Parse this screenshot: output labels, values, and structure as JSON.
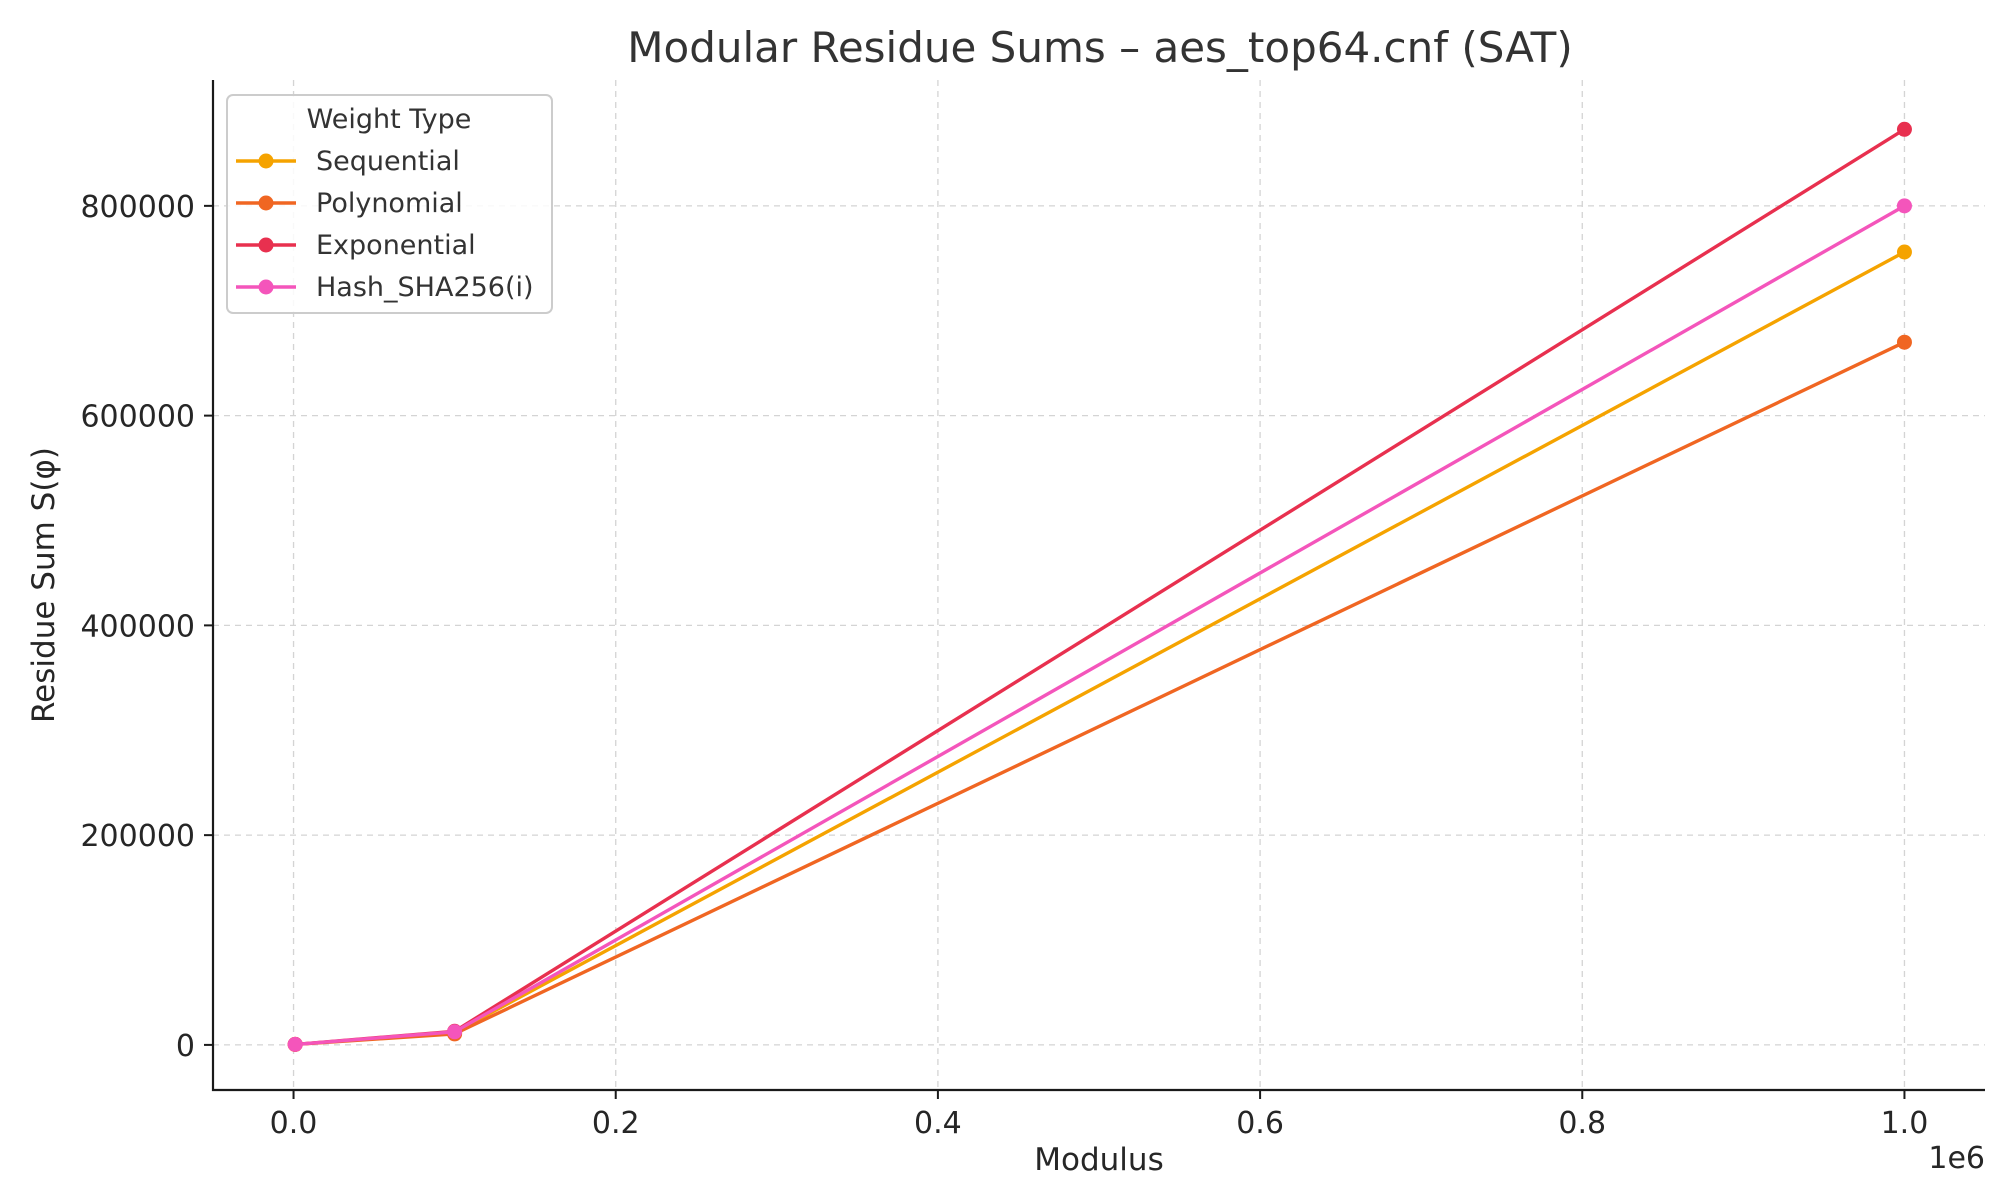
{
  "chart_data": {
    "type": "line",
    "title": "Modular Residue Sums – aes_top64.cnf (SAT)",
    "xlabel": "Modulus",
    "ylabel": "Residue Sum S(φ)",
    "x_offset_label": "1e6",
    "x": [
      1000,
      100000,
      1000000
    ],
    "xlim": [
      -50000,
      1050000
    ],
    "ylim": [
      -43000,
      920000
    ],
    "x_ticks": [
      0,
      200000,
      400000,
      600000,
      800000,
      1000000
    ],
    "x_tick_labels": [
      "0.0",
      "0.2",
      "0.4",
      "0.6",
      "0.8",
      "1.0"
    ],
    "y_ticks": [
      0,
      200000,
      400000,
      600000,
      800000
    ],
    "y_tick_labels": [
      "0",
      "200000",
      "400000",
      "600000",
      "800000"
    ],
    "grid": true,
    "legend": {
      "title": "Weight Type",
      "position": "top-left"
    },
    "series": [
      {
        "name": "Sequential",
        "color": "#f5a300",
        "values": [
          480,
          12000,
          756000
        ]
      },
      {
        "name": "Polynomial",
        "color": "#f06622",
        "values": [
          450,
          10500,
          670000
        ]
      },
      {
        "name": "Exponential",
        "color": "#e8304f",
        "values": [
          520,
          13000,
          873000
        ]
      },
      {
        "name": "Hash_SHA256(i)",
        "color": "#f455bb",
        "values": [
          500,
          12500,
          800000
        ]
      }
    ]
  }
}
